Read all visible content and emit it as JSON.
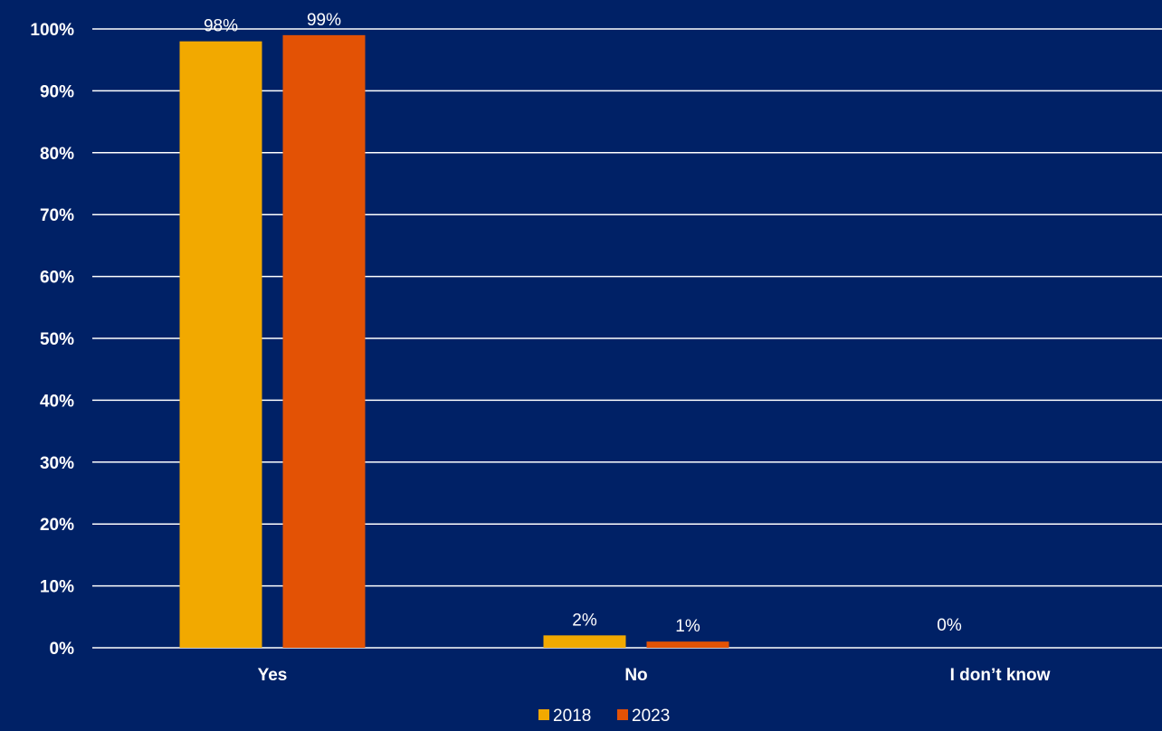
{
  "chart_data": {
    "type": "bar",
    "categories": [
      "Yes",
      "No",
      "I don’t know"
    ],
    "series": [
      {
        "name": "2018",
        "values": [
          98,
          2,
          0
        ],
        "labels": [
          "98%",
          "2%",
          ""
        ],
        "color": "#f2a900"
      },
      {
        "name": "2023",
        "values": [
          99,
          1,
          0
        ],
        "labels": [
          "99%",
          "1%",
          ""
        ],
        "color": "#e35205"
      }
    ],
    "extra_labels": [
      "0%"
    ],
    "yticks": [
      "0%",
      "10%",
      "20%",
      "30%",
      "40%",
      "50%",
      "60%",
      "70%",
      "80%",
      "90%",
      "100%"
    ],
    "ylim": [
      0,
      100
    ],
    "grid": true,
    "legend_position": "bottom",
    "background_color": "#002166"
  }
}
